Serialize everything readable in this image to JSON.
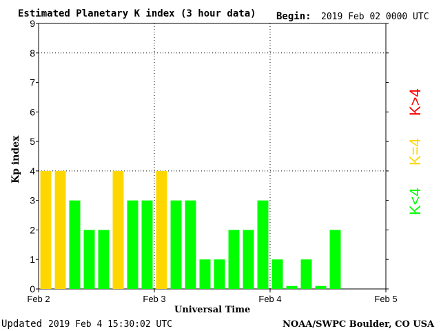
{
  "header": {
    "title": "Estimated Planetary K index (3 hour data)",
    "begin_label": "Begin:",
    "begin_value": "2019 Feb 02 0000 UTC"
  },
  "footer": {
    "updated_label": "Updated",
    "updated_value": "2019 Feb  4 15:30:02 UTC",
    "source": "NOAA/SWPC Boulder, CO USA"
  },
  "legend": {
    "above": "K>4",
    "equal": "K=4",
    "below": "K<4"
  },
  "colors": {
    "below4": "#00ff00",
    "equal4": "#ffd700",
    "above4": "#ff0000",
    "background": "#ffffff",
    "axis": "#000000"
  },
  "chart_data": {
    "type": "bar",
    "title": "Estimated Planetary K index (3 hour data)",
    "xlabel": "Universal Time",
    "ylabel": "Kp index",
    "ylim": [
      0,
      9
    ],
    "y_ticks": [
      "0",
      "1",
      "2",
      "3",
      "4",
      "5",
      "6",
      "7",
      "8",
      "9"
    ],
    "x_ticks": [
      "Feb 2",
      "Feb 3",
      "Feb 4",
      "Feb 5"
    ],
    "grid": "dotted at Kp 4 and Kp 8 and at day boundaries",
    "interval_hours": 3,
    "start": "2019 Feb 02 0000 UTC",
    "values": [
      4,
      4,
      3,
      2,
      2,
      4,
      3,
      3,
      4,
      3,
      3,
      1,
      1,
      2,
      2,
      3,
      1,
      0.1,
      1,
      0.1,
      2
    ]
  }
}
